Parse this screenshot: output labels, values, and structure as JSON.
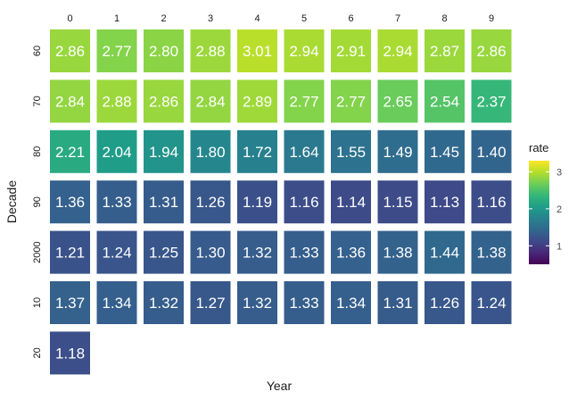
{
  "chart_data": {
    "type": "heatmap",
    "xlabel": "Year",
    "ylabel": "Decade",
    "x_categories": [
      "0",
      "1",
      "2",
      "3",
      "4",
      "5",
      "6",
      "7",
      "8",
      "9"
    ],
    "y_categories": [
      "60",
      "70",
      "80",
      "90",
      "2000",
      "10",
      "20"
    ],
    "values": [
      [
        2.86,
        2.77,
        2.8,
        2.88,
        3.01,
        2.94,
        2.91,
        2.94,
        2.87,
        2.86
      ],
      [
        2.84,
        2.88,
        2.86,
        2.84,
        2.89,
        2.77,
        2.77,
        2.65,
        2.54,
        2.37
      ],
      [
        2.21,
        2.04,
        1.94,
        1.8,
        1.72,
        1.64,
        1.55,
        1.49,
        1.45,
        1.4
      ],
      [
        1.36,
        1.33,
        1.31,
        1.26,
        1.19,
        1.16,
        1.14,
        1.15,
        1.13,
        1.16
      ],
      [
        1.21,
        1.24,
        1.25,
        1.3,
        1.32,
        1.33,
        1.36,
        1.38,
        1.44,
        1.38
      ],
      [
        1.37,
        1.34,
        1.32,
        1.27,
        1.32,
        1.33,
        1.34,
        1.31,
        1.26,
        1.24
      ],
      [
        1.18,
        null,
        null,
        null,
        null,
        null,
        null,
        null,
        null,
        null
      ]
    ],
    "legend": {
      "title": "rate",
      "position": "right",
      "ticks": [
        1,
        2,
        3
      ],
      "range": [
        0.5,
        3.3
      ]
    },
    "colormap": "viridis",
    "grid": false
  }
}
